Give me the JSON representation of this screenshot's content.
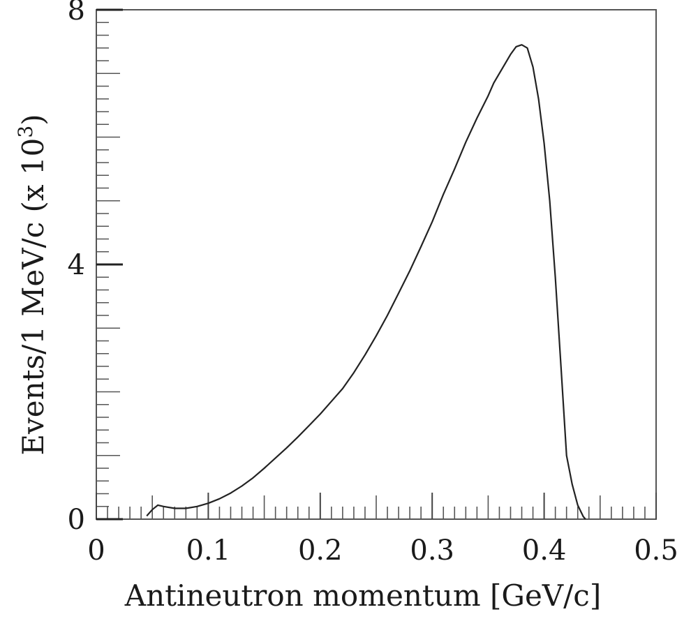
{
  "chart_data": {
    "type": "line",
    "title": "",
    "xlabel": "Antineutron momentum  [GeV/c]",
    "ylabel_main": "Events/1 MeV/c (x 10",
    "ylabel_sup": "3",
    "ylabel_close": ")",
    "xlim": [
      0,
      0.5
    ],
    "ylim": [
      0,
      8
    ],
    "x_ticks": [
      {
        "value": 0,
        "label": "0"
      },
      {
        "value": 0.1,
        "label": "0.1"
      },
      {
        "value": 0.2,
        "label": "0.2"
      },
      {
        "value": 0.3,
        "label": "0.3"
      },
      {
        "value": 0.4,
        "label": "0.4"
      },
      {
        "value": 0.5,
        "label": "0.5"
      }
    ],
    "y_ticks": [
      {
        "value": 0,
        "label": "0"
      },
      {
        "value": 4,
        "label": "4"
      },
      {
        "value": 8,
        "label": "8"
      }
    ],
    "x_minor_step": 0.01,
    "y_minor_step": 0.2,
    "grid": false,
    "series": [
      {
        "x": [
          0.045,
          0.05,
          0.055,
          0.06,
          0.07,
          0.08,
          0.09,
          0.1,
          0.11,
          0.12,
          0.13,
          0.14,
          0.15,
          0.16,
          0.17,
          0.18,
          0.19,
          0.2,
          0.21,
          0.22,
          0.23,
          0.24,
          0.25,
          0.26,
          0.27,
          0.28,
          0.29,
          0.3,
          0.31,
          0.32,
          0.33,
          0.34,
          0.35,
          0.355,
          0.36,
          0.365,
          0.37,
          0.375,
          0.38,
          0.385,
          0.39,
          0.395,
          0.4,
          0.405,
          0.41,
          0.415,
          0.42,
          0.425,
          0.43,
          0.435,
          0.437
        ],
        "values": [
          0.05,
          0.15,
          0.22,
          0.2,
          0.17,
          0.17,
          0.2,
          0.25,
          0.32,
          0.41,
          0.52,
          0.65,
          0.8,
          0.96,
          1.12,
          1.29,
          1.47,
          1.65,
          1.85,
          2.05,
          2.3,
          2.58,
          2.88,
          3.2,
          3.55,
          3.9,
          4.28,
          4.67,
          5.1,
          5.5,
          5.92,
          6.3,
          6.65,
          6.85,
          7.0,
          7.15,
          7.3,
          7.42,
          7.45,
          7.4,
          7.1,
          6.6,
          5.9,
          5.0,
          3.8,
          2.4,
          1.0,
          0.55,
          0.22,
          0.04,
          0.0
        ]
      }
    ]
  }
}
